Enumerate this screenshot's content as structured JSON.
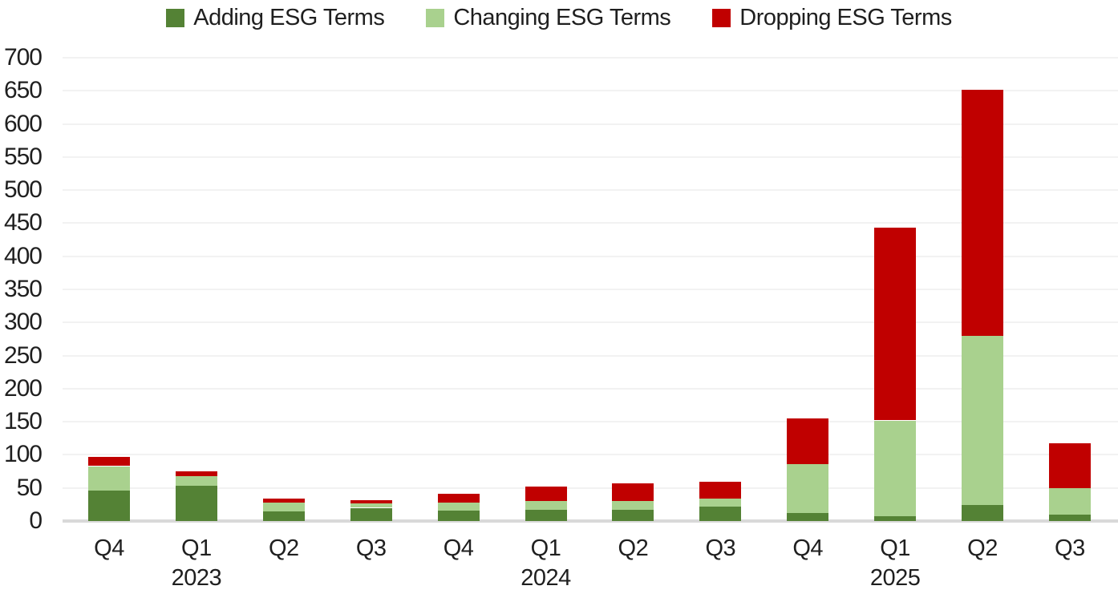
{
  "chart_data": {
    "type": "bar",
    "stacked": true,
    "title": "",
    "xlabel": "",
    "ylabel": "",
    "ylim": [
      0,
      700
    ],
    "ytick_step": 50,
    "grid": "horizontal",
    "legend_position": "top",
    "categories": [
      "Q4 2022",
      "Q1 2023",
      "Q2 2023",
      "Q3 2023",
      "Q4 2023",
      "Q1 2024",
      "Q2 2024",
      "Q3 2024",
      "Q4 2024",
      "Q1 2025",
      "Q2 2025",
      "Q3 2025"
    ],
    "x_tick_labels": [
      "Q4",
      "Q1",
      "Q2",
      "Q3",
      "Q4",
      "Q1",
      "Q2",
      "Q3",
      "Q4",
      "Q1",
      "Q2",
      "Q3"
    ],
    "year_labels": [
      {
        "index": 1,
        "label": "2023"
      },
      {
        "index": 5,
        "label": "2024"
      },
      {
        "index": 9,
        "label": "2025"
      }
    ],
    "series": [
      {
        "name": "Adding ESG Terms",
        "color": "#548235",
        "values": [
          46,
          53,
          14,
          20,
          16,
          17,
          17,
          22,
          12,
          7,
          24,
          10
        ]
      },
      {
        "name": "Changing ESG Terms",
        "color": "#A9D18E",
        "values": [
          37,
          15,
          14,
          7,
          12,
          13,
          13,
          12,
          74,
          145,
          256,
          40
        ]
      },
      {
        "name": "Dropping ESG Terms",
        "color": "#C00000",
        "values": [
          14,
          7,
          6,
          4,
          13,
          22,
          27,
          26,
          69,
          291,
          372,
          67
        ]
      }
    ],
    "totals": [
      97,
      75,
      34,
      31,
      41,
      52,
      57,
      60,
      155,
      443,
      652,
      117
    ]
  },
  "styles": {
    "grid_color": "#f2f2f2",
    "axis_line_color": "#d9d9d9",
    "text_color": "#1f1f1f",
    "background": "#ffffff"
  }
}
